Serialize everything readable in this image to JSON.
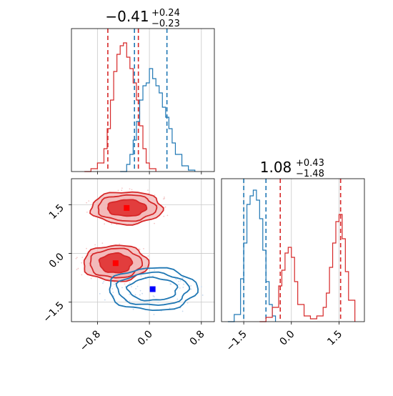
{
  "colors": {
    "red": "#d62728",
    "red_fill_light": "#f2b6b6",
    "red_fill_dark": "#e03030",
    "blue": "#1f77b4",
    "blue_points": "#c6d8ee",
    "red_points": "#f3c8c8",
    "grid": "#c8c8c8",
    "marker_red": "#ff0000",
    "marker_blue": "#0000ff"
  },
  "chart_data": [
    {
      "panel": "top-left",
      "type": "histogram",
      "title_main": "−0.41",
      "title_sup": "+0.24",
      "title_sub": "−0.23",
      "xlim": [
        -1.2,
        1.0
      ],
      "grid": true,
      "series": [
        {
          "color": "red",
          "x": [
            -1.0,
            -0.9,
            -0.8,
            -0.7,
            -0.65,
            -0.6,
            -0.55,
            -0.5,
            -0.45,
            -0.4,
            -0.35,
            -0.3,
            -0.25,
            -0.2,
            -0.15,
            -0.1,
            -0.05,
            0.0,
            0.1
          ],
          "values": [
            0.0,
            0.02,
            0.06,
            0.16,
            0.3,
            0.5,
            0.7,
            0.82,
            0.88,
            0.9,
            0.8,
            0.72,
            0.62,
            0.5,
            0.32,
            0.16,
            0.06,
            0.02,
            0.0
          ],
          "vlines": [
            -0.64,
            -0.17
          ]
        },
        {
          "color": "blue",
          "x": [
            -0.45,
            -0.35,
            -0.3,
            -0.25,
            -0.2,
            -0.15,
            -0.1,
            -0.05,
            0.0,
            0.05,
            0.1,
            0.15,
            0.2,
            0.25,
            0.3,
            0.35,
            0.4,
            0.5,
            0.6,
            0.7
          ],
          "values": [
            0.0,
            0.05,
            0.12,
            0.22,
            0.35,
            0.5,
            0.6,
            0.62,
            0.72,
            0.65,
            0.6,
            0.55,
            0.45,
            0.38,
            0.3,
            0.2,
            0.12,
            0.04,
            0.01,
            0.0
          ],
          "vlines": [
            -0.23,
            0.27
          ]
        }
      ]
    },
    {
      "panel": "bottom-left",
      "type": "scatter",
      "xlim": [
        -1.2,
        1.0
      ],
      "ylim": [
        -2.1,
        2.3
      ],
      "xticks": [
        "−0.8",
        "0.0",
        "0.8"
      ],
      "xtick_values": [
        -0.8,
        0.0,
        0.8
      ],
      "yticks": [
        "1.5",
        "0.0",
        "−1.5"
      ],
      "ytick_values": [
        1.5,
        0.0,
        -1.5
      ],
      "grid": true,
      "clusters": [
        {
          "color": "red",
          "center": [
            -0.35,
            1.4
          ],
          "radii_x": [
            0.55,
            0.45,
            0.3
          ],
          "radii_y": [
            0.5,
            0.4,
            0.25
          ]
        },
        {
          "color": "red",
          "center": [
            -0.52,
            -0.3
          ],
          "radii_x": [
            0.5,
            0.4,
            0.25
          ],
          "radii_y": [
            0.55,
            0.45,
            0.3
          ]
        },
        {
          "color": "blue",
          "center": [
            0.05,
            -1.1
          ],
          "radii_x": [
            0.68,
            0.55,
            0.38
          ],
          "radii_y": [
            0.65,
            0.5,
            0.35
          ]
        }
      ],
      "markers": [
        {
          "color": "marker_red",
          "x": -0.35,
          "y": 1.4
        },
        {
          "color": "marker_red",
          "x": -0.52,
          "y": -0.3
        },
        {
          "color": "marker_blue",
          "x": 0.05,
          "y": -1.1
        }
      ]
    },
    {
      "panel": "bottom-right",
      "type": "histogram",
      "title_main": "1.08",
      "title_sup": "+0.43",
      "title_sub": "−1.48",
      "xlim": [
        -2.2,
        2.3
      ],
      "xticks": [
        "−1.5",
        "0.0",
        "1.5"
      ],
      "xtick_values": [
        -1.5,
        0.0,
        1.5
      ],
      "grid": true,
      "series": [
        {
          "color": "blue",
          "x": [
            -2.0,
            -1.8,
            -1.6,
            -1.5,
            -1.4,
            -1.3,
            -1.2,
            -1.1,
            -1.0,
            -0.9,
            -0.8,
            -0.7,
            -0.6,
            -0.5
          ],
          "values": [
            0.0,
            0.05,
            0.3,
            0.55,
            0.82,
            0.88,
            0.92,
            0.85,
            0.72,
            0.5,
            0.28,
            0.12,
            0.04,
            0.0
          ],
          "vlines": [
            -1.5,
            -0.8
          ]
        },
        {
          "color": "red",
          "x": [
            -1.0,
            -0.8,
            -0.6,
            -0.4,
            -0.3,
            -0.2,
            -0.1,
            0.0,
            0.1,
            0.2,
            0.4,
            0.6,
            0.8,
            1.0,
            1.1,
            1.2,
            1.3,
            1.4,
            1.5,
            1.6,
            1.7,
            1.8,
            2.0
          ],
          "values": [
            0.0,
            0.03,
            0.1,
            0.25,
            0.36,
            0.48,
            0.52,
            0.45,
            0.28,
            0.12,
            0.04,
            0.02,
            0.04,
            0.1,
            0.2,
            0.38,
            0.55,
            0.7,
            0.75,
            0.58,
            0.35,
            0.15,
            0.0
          ],
          "vlines": [
            -0.35,
            1.55
          ]
        }
      ]
    }
  ]
}
